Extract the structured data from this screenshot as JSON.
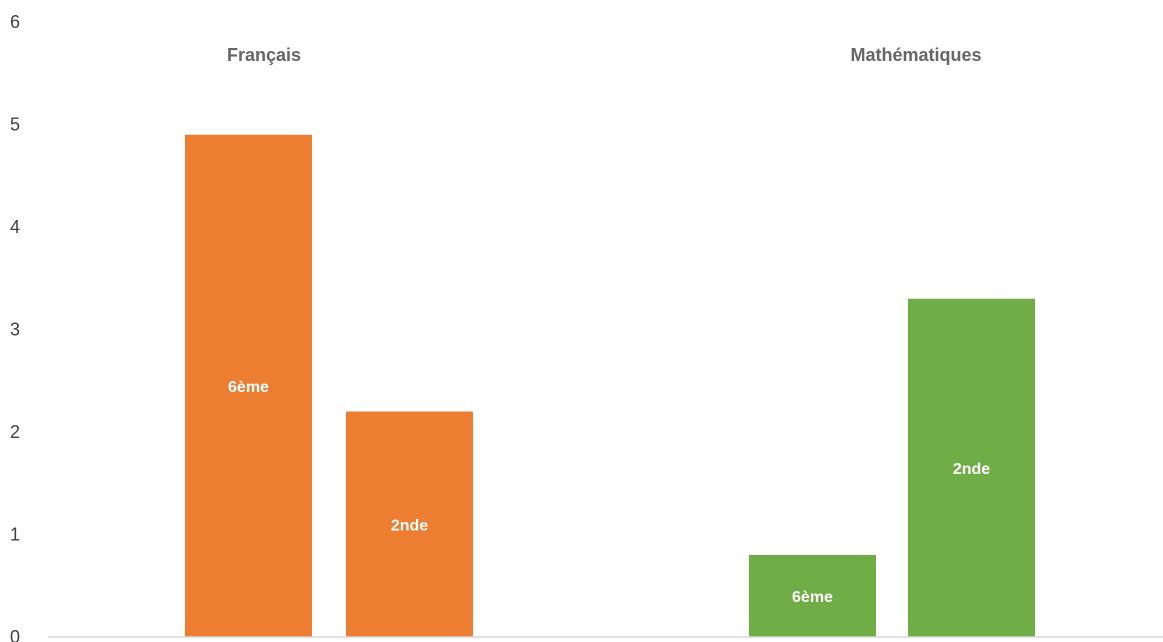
{
  "chart_data": {
    "type": "bar",
    "categories": [
      "Français",
      "Mathématiques"
    ],
    "ylim": [
      0,
      6
    ],
    "y_ticks": [
      0,
      1,
      2,
      3,
      4,
      5,
      6
    ],
    "grid": false,
    "legend": "none",
    "bars": [
      {
        "category": "Français",
        "label": "6ème",
        "value": 4.9,
        "color": "#ED7D31"
      },
      {
        "category": "Français",
        "label": "2nde",
        "value": 2.2,
        "color": "#ED7D31"
      },
      {
        "category": "Mathématiques",
        "label": "6ème",
        "value": 0.8,
        "color": "#70AD47"
      },
      {
        "category": "Mathématiques",
        "label": "2nde",
        "value": 3.3,
        "color": "#70AD47"
      }
    ]
  }
}
